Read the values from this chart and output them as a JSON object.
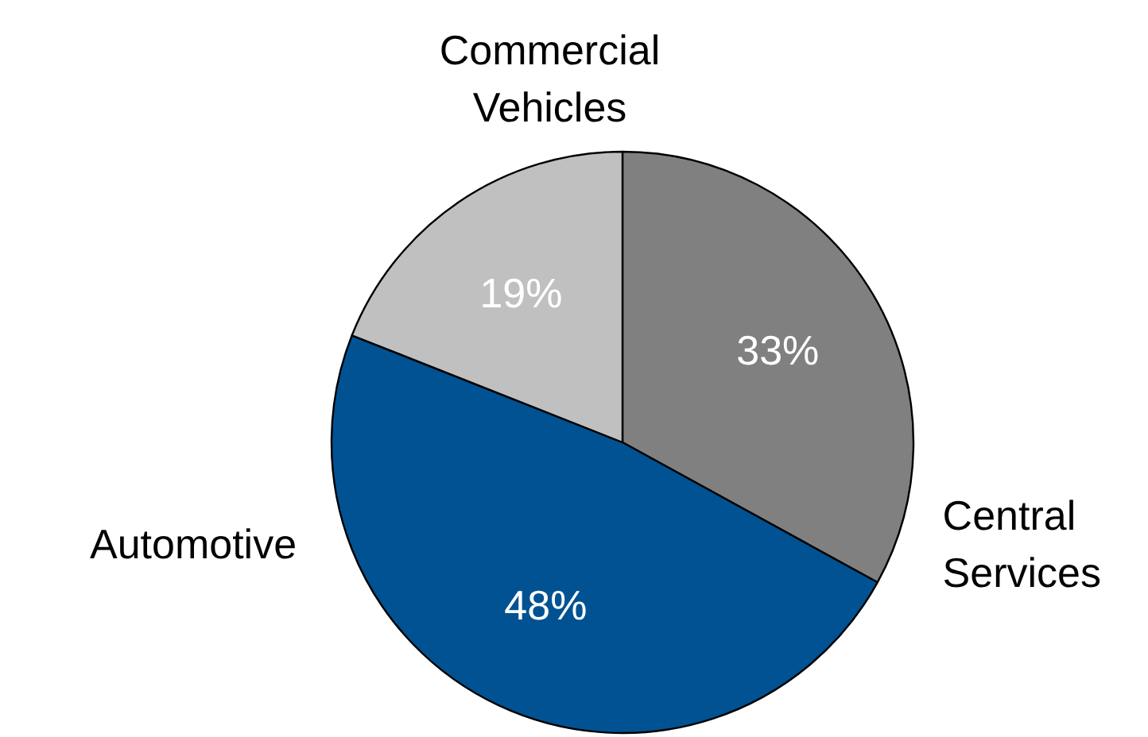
{
  "chart_data": {
    "type": "pie",
    "categories": [
      "Central\nServices",
      "Automotive",
      "Commercial\nVehicles"
    ],
    "values": [
      33,
      48,
      19
    ],
    "colors": [
      "#808080",
      "#005293",
      "#c0c0c0"
    ],
    "value_labels": [
      "33%",
      "48%",
      "19%"
    ]
  }
}
